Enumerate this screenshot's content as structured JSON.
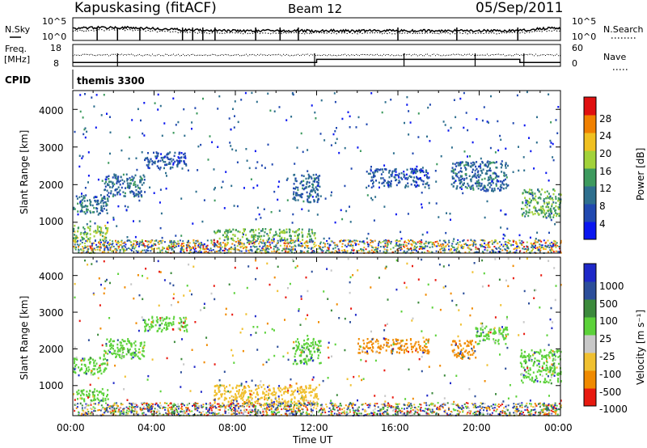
{
  "header": {
    "station": "Kapuskasing (fitACF)",
    "beam": "Beam 12",
    "date": "05/Sep/2011"
  },
  "noise_panel": {
    "left_label": "N.Sky",
    "right_label": "N.Search",
    "left_ticks": [
      "10^5",
      "10^0"
    ],
    "right_ticks": [
      "10^5",
      "10^0"
    ]
  },
  "freq_panel": {
    "left_label_1": "Freq.",
    "left_label_2": "[MHz]",
    "right_label": "Nave",
    "left_ticks": [
      "18",
      "8"
    ],
    "right_ticks": [
      "60",
      "0"
    ]
  },
  "cpid": {
    "label": "CPID",
    "value": "themis 3300"
  },
  "x_axis": {
    "label": "Time UT",
    "ticks": [
      "00:00",
      "04:00",
      "08:00",
      "12:00",
      "16:00",
      "20:00",
      "00:00"
    ]
  },
  "power_panel": {
    "ylabel": "Slant Range [km]",
    "yticks": [
      "4000",
      "3000",
      "2000",
      "1000"
    ],
    "colorbar_label": "Power [dB]",
    "colorbar_ticks": [
      "28",
      "24",
      "20",
      "16",
      "12",
      "8",
      "4"
    ]
  },
  "velocity_panel": {
    "ylabel": "Slant Range [km]",
    "yticks": [
      "4000",
      "3000",
      "2000",
      "1000"
    ],
    "colorbar_label": "Velocity [m s⁻¹]",
    "colorbar_ticks": [
      "1000",
      "500",
      "100",
      "25",
      "-25",
      "-100",
      "-500",
      "-1000"
    ]
  },
  "chart_data": {
    "type": "heatmap",
    "title": "Kapuskasing (fitACF)",
    "xlabel": "Time UT",
    "ylabel": "Slant Range [km]",
    "x_range_hours": [
      0,
      24
    ],
    "y_range_km": [
      180,
      4500
    ],
    "panels": [
      {
        "name": "Power [dB]",
        "clim": [
          0,
          32
        ],
        "colorbar_colors": [
          "#0a16f0",
          "#2149b0",
          "#2e6f8e",
          "#3d9a5e",
          "#a2d23a",
          "#f0c020",
          "#f08000",
          "#e01010"
        ],
        "scatter_regions": [
          {
            "t": [
              0,
              1.7
            ],
            "r": [
              1250,
              1750
            ],
            "level": 10
          },
          {
            "t": [
              0,
              1.7
            ],
            "r": [
              550,
              950
            ],
            "level": 17
          },
          {
            "t": [
              1.5,
              3.5
            ],
            "r": [
              1700,
              2300
            ],
            "level": 9
          },
          {
            "t": [
              3.5,
              5.6
            ],
            "r": [
              2450,
              2900
            ],
            "level": 7
          },
          {
            "t": [
              6.9,
              11.9
            ],
            "r": [
              550,
              850
            ],
            "level": 16
          },
          {
            "t": [
              10.8,
              12.2
            ],
            "r": [
              1550,
              2300
            ],
            "level": 9
          },
          {
            "t": [
              14.5,
              17.5
            ],
            "r": [
              1950,
              2450
            ],
            "level": 7
          },
          {
            "t": [
              18.6,
              21.4
            ],
            "r": [
              1850,
              2650
            ],
            "level": 9
          },
          {
            "t": [
              22.0,
              24.0
            ],
            "r": [
              1150,
              1900
            ],
            "level": 15
          }
        ]
      },
      {
        "name": "Velocity [m s-1]",
        "levels": [
          1000,
          500,
          100,
          25,
          -25,
          -100,
          -500,
          -1000
        ],
        "colorbar_colors": [
          "#1e28c8",
          "#2c4e9a",
          "#3c8a3c",
          "#5cd23a",
          "#c8c8c8",
          "#f0c030",
          "#f08a00",
          "#e81a10"
        ],
        "scatter_regions": [
          {
            "t": [
              0,
              1.7
            ],
            "r": [
              1300,
              1800
            ],
            "velocity": 0
          },
          {
            "t": [
              0,
              1.7
            ],
            "r": [
              600,
              950
            ],
            "velocity": 0
          },
          {
            "t": [
              1.5,
              3.5
            ],
            "r": [
              1750,
              2300
            ],
            "velocity": 0
          },
          {
            "t": [
              3.5,
              5.6
            ],
            "r": [
              2500,
              2900
            ],
            "velocity": 0
          },
          {
            "t": [
              6.9,
              12.1
            ],
            "r": [
              450,
              1050
            ],
            "velocity": -100
          },
          {
            "t": [
              10.8,
              12.2
            ],
            "r": [
              1600,
              2300
            ],
            "velocity": 0
          },
          {
            "t": [
              14.0,
              17.5
            ],
            "r": [
              1900,
              2300
            ],
            "velocity": -500
          },
          {
            "t": [
              18.6,
              19.8
            ],
            "r": [
              1750,
              2250
            ],
            "velocity": -500
          },
          {
            "t": [
              19.8,
              21.4
            ],
            "r": [
              2150,
              2650
            ],
            "velocity": 0
          },
          {
            "t": [
              22.0,
              24.0
            ],
            "r": [
              1100,
              2000
            ],
            "velocity": 0
          }
        ]
      }
    ],
    "frequency_MHz": [
      {
        "t": [
          0,
          12
        ],
        "value": 10.4
      },
      {
        "t": [
          12,
          22
        ],
        "value": 12.3
      },
      {
        "t": [
          22,
          24
        ],
        "value": 10.4
      }
    ],
    "grid": false
  }
}
